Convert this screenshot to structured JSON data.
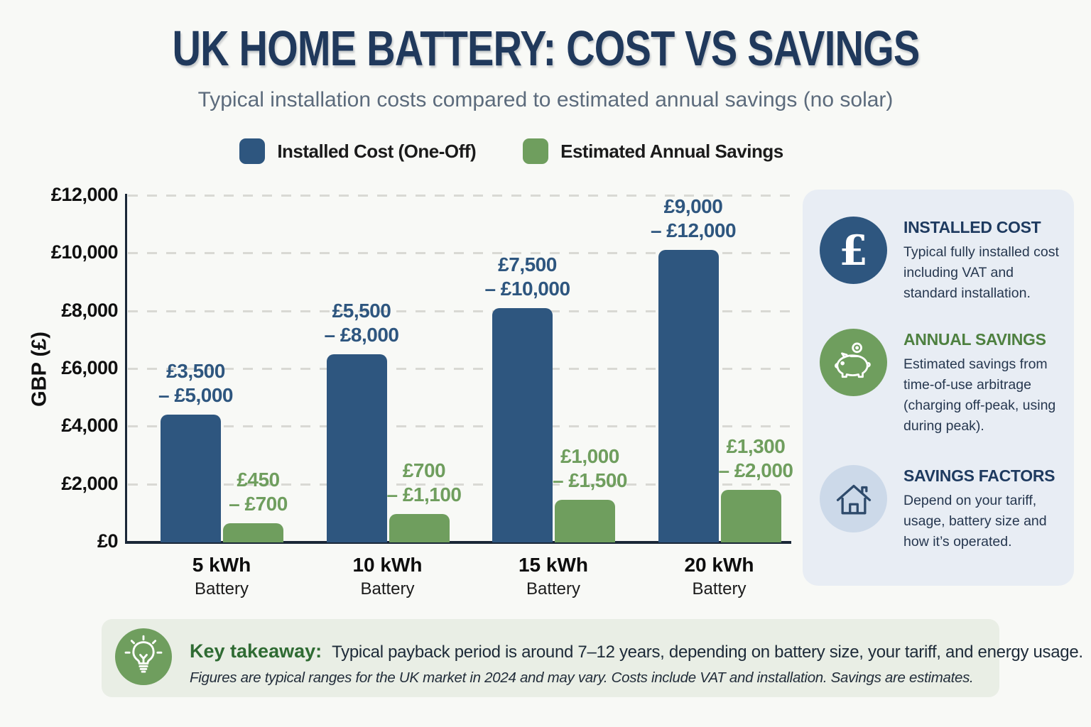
{
  "page": {
    "title": "UK HOME BATTERY: COST VS SAVINGS",
    "subtitle": "Typical installation costs compared to estimated annual savings (no solar)"
  },
  "colors": {
    "navy_bar": "#2e567f",
    "green_bar": "#6f9e5e",
    "navy_heading": "#1e3a5f",
    "green_heading": "#4e8040",
    "axis": "#1a2737",
    "sidebar_bg": "#e8edf4",
    "takeaway_bg": "#e9eee5"
  },
  "legend": [
    {
      "label": "Installed Cost (One-Off)",
      "color": "#2e567f"
    },
    {
      "label": "Estimated Annual Savings",
      "color": "#6f9e5e"
    }
  ],
  "chart_data": {
    "type": "bar",
    "categories": [
      "5 kWh",
      "10 kWh",
      "15 kWh",
      "20 kWh"
    ],
    "category_sublabel": "Battery",
    "series": [
      {
        "name": "Installed Cost (One-Off)",
        "color": "#2e567f",
        "label_color": "#2e567f",
        "values": [
          4400,
          6500,
          8100,
          10100
        ],
        "range_labels": [
          [
            "£3,500",
            "– £5,000"
          ],
          [
            "£5,500",
            "– £8,000"
          ],
          [
            "£7,500",
            "– £10,000"
          ],
          [
            "£9,000",
            "– £12,000"
          ]
        ]
      },
      {
        "name": "Estimated Annual Savings",
        "color": "#6f9e5e",
        "label_color": "#6f9e5e",
        "values": [
          650,
          950,
          1450,
          1800
        ],
        "range_labels": [
          [
            "£450",
            "– £700"
          ],
          [
            "£700",
            "– £1,100"
          ],
          [
            "£1,000",
            "– £1,500"
          ],
          [
            "£1,300",
            "– £2,000"
          ]
        ]
      }
    ],
    "title": "UK HOME BATTERY: COST VS SAVINGS",
    "xlabel": "",
    "ylabel": "GBP (£)",
    "yticks": [
      "£0",
      "£2,000",
      "£4,000",
      "£6,000",
      "£8,000",
      "£10,000",
      "£12,000"
    ],
    "ylim": [
      0,
      12000
    ],
    "grid": true,
    "legend_position": "top"
  },
  "sidebar": {
    "items": [
      {
        "icon": "pound-icon",
        "circle_color": "#2e567f",
        "heading": "INSTALLED COST",
        "heading_color": "#1e3a5f",
        "text": "Typical fully installed cost including VAT and standard installation."
      },
      {
        "icon": "piggy-bank-icon",
        "circle_color": "#6f9e5e",
        "heading": "ANNUAL SAVINGS",
        "heading_color": "#4e8040",
        "text": "Estimated savings from time-of-use arbitrage (charging off-peak, using during peak)."
      },
      {
        "icon": "house-icon",
        "circle_color": "#ccd9e9",
        "heading": "SAVINGS FACTORS",
        "heading_color": "#1e3a5f",
        "text": "Depend on your tariff, usage, battery size and how it’s operated."
      }
    ]
  },
  "takeaway": {
    "label": "Key takeaway:",
    "text": "Typical payback period is around 7–12 years, depending on battery size, your tariff, and energy usage.",
    "footnote": "Figures are typical ranges for the UK market in 2024 and may vary. Costs include VAT and installation. Savings are estimates."
  }
}
